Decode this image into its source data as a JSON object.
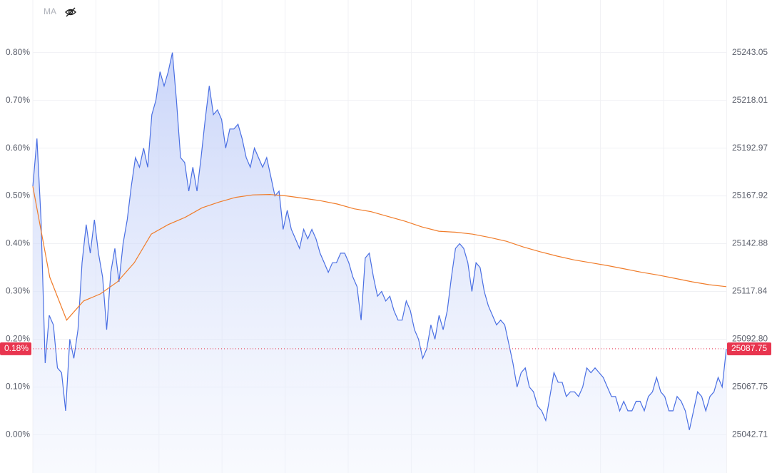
{
  "chart_data": {
    "type": "line",
    "indicator": "MA",
    "ylim": [
      -0.08,
      0.91
    ],
    "yticks": [
      {
        "value": 0,
        "label": "0.00%"
      },
      {
        "value": 0.1,
        "label": "0.10%"
      },
      {
        "value": 0.2,
        "label": "0.20%"
      },
      {
        "value": 0.3,
        "label": "0.30%"
      },
      {
        "value": 0.4,
        "label": "0.40%"
      },
      {
        "value": 0.5,
        "label": "0.50%"
      },
      {
        "value": 0.6,
        "label": "0.60%"
      },
      {
        "value": 0.7,
        "label": "0.70%"
      },
      {
        "value": 0.8,
        "label": "0.80%"
      }
    ],
    "y2lim": [
      25022.68,
      25270.59
    ],
    "y2ticks": [
      25042.71,
      25067.75,
      {
        "value": 25092.8,
        "label": "25092.80"
      },
      25117.84,
      25142.88,
      25167.92,
      25192.97,
      25218.01,
      25243.05
    ],
    "grid": true,
    "area": true,
    "last_value": {
      "value": 0.18,
      "label": "0.18%"
    },
    "last_value_y2": 25087.75,
    "series": [
      {
        "color": "#4a6fe3",
        "values": [
          0.52,
          0.62,
          0.45,
          0.15,
          0.25,
          0.23,
          0.14,
          0.13,
          0.05,
          0.2,
          0.16,
          0.22,
          0.36,
          0.44,
          0.38,
          0.45,
          0.38,
          0.33,
          0.22,
          0.34,
          0.39,
          0.32,
          0.4,
          0.45,
          0.52,
          0.58,
          0.56,
          0.6,
          0.56,
          0.67,
          0.7,
          0.76,
          0.73,
          0.76,
          0.8,
          0.7,
          0.58,
          0.57,
          0.51,
          0.56,
          0.51,
          0.58,
          0.66,
          0.73,
          0.67,
          0.68,
          0.66,
          0.6,
          0.64,
          0.64,
          0.65,
          0.62,
          0.58,
          0.56,
          0.6,
          0.58,
          0.56,
          0.58,
          0.54,
          0.5,
          0.51,
          0.43,
          0.47,
          0.43,
          0.41,
          0.39,
          0.43,
          0.41,
          0.43,
          0.41,
          0.38,
          0.36,
          0.34,
          0.36,
          0.36,
          0.38,
          0.38,
          0.36,
          0.33,
          0.31,
          0.24,
          0.37,
          0.38,
          0.33,
          0.29,
          0.3,
          0.28,
          0.29,
          0.26,
          0.24,
          0.24,
          0.28,
          0.26,
          0.22,
          0.2,
          0.16,
          0.18,
          0.23,
          0.2,
          0.25,
          0.22,
          0.26,
          0.33,
          0.39,
          0.4,
          0.39,
          0.36,
          0.3,
          0.36,
          0.35,
          0.3,
          0.27,
          0.25,
          0.23,
          0.24,
          0.23,
          0.19,
          0.15,
          0.1,
          0.13,
          0.14,
          0.1,
          0.09,
          0.06,
          0.05,
          0.03,
          0.08,
          0.13,
          0.11,
          0.11,
          0.08,
          0.09,
          0.09,
          0.08,
          0.1,
          0.14,
          0.13,
          0.14,
          0.13,
          0.12,
          0.1,
          0.08,
          0.08,
          0.05,
          0.07,
          0.05,
          0.05,
          0.07,
          0.07,
          0.05,
          0.08,
          0.09,
          0.12,
          0.09,
          0.08,
          0.05,
          0.05,
          0.08,
          0.07,
          0.05,
          0.01,
          0.05,
          0.09,
          0.08,
          0.05,
          0.08,
          0.09,
          0.12,
          0.1,
          0.18
        ]
      },
      {
        "color": "#f07c2a",
        "values": [
          0.52,
          0.33,
          0.24,
          0.28,
          0.295,
          0.32,
          0.36,
          0.42,
          0.44,
          0.455,
          0.475,
          0.487,
          0.497,
          0.502,
          0.503,
          0.5,
          0.495,
          0.49,
          0.483,
          0.473,
          0.467,
          0.457,
          0.447,
          0.435,
          0.426,
          0.424,
          0.42,
          0.413,
          0.405,
          0.393,
          0.383,
          0.374,
          0.366,
          0.36,
          0.354,
          0.347,
          0.34,
          0.334,
          0.327,
          0.32,
          0.314,
          0.31
        ]
      }
    ]
  }
}
